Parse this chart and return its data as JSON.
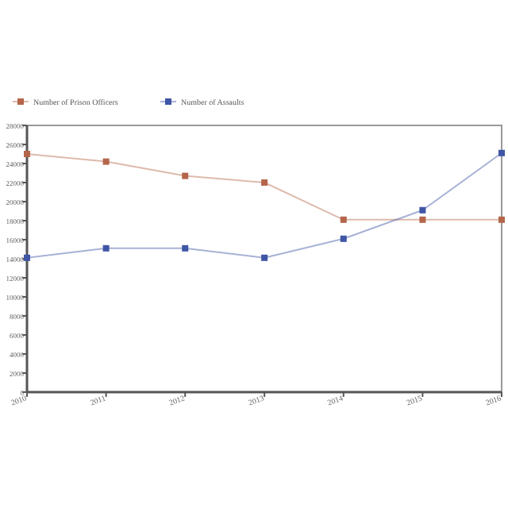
{
  "chart_data": {
    "type": "line",
    "x": [
      "2010",
      "2011",
      "2012",
      "2013",
      "2014",
      "2015",
      "2016"
    ],
    "series": [
      {
        "name": "Number of Prison Officers",
        "color": "#b5654a",
        "values": [
          25000,
          24200,
          22700,
          22000,
          18100,
          18100,
          18100
        ]
      },
      {
        "name": "Number of Assaults",
        "color": "#3f55a5",
        "values": [
          14100,
          15100,
          15100,
          14100,
          16100,
          19100,
          25100
        ]
      }
    ],
    "ylim": [
      0,
      28000
    ],
    "yticks": [
      0,
      2000,
      4000,
      6000,
      8000,
      10000,
      12000,
      14000,
      16000,
      18000,
      20000,
      22000,
      24000,
      26000,
      28000
    ],
    "xlim": [
      "2010",
      "2016"
    ],
    "xticks": [
      {
        "value": "2010",
        "label": "2010"
      },
      {
        "value": "2011",
        "label": "2011"
      },
      {
        "value": "2012",
        "label": "2012"
      },
      {
        "value": "2013",
        "label": "2013"
      },
      {
        "value": "2014",
        "label": "2014"
      },
      {
        "value": "2015",
        "label": "2015"
      },
      {
        "value": "2016",
        "label": "2016"
      }
    ],
    "marker": "square",
    "legend": "top left",
    "grid": false
  }
}
